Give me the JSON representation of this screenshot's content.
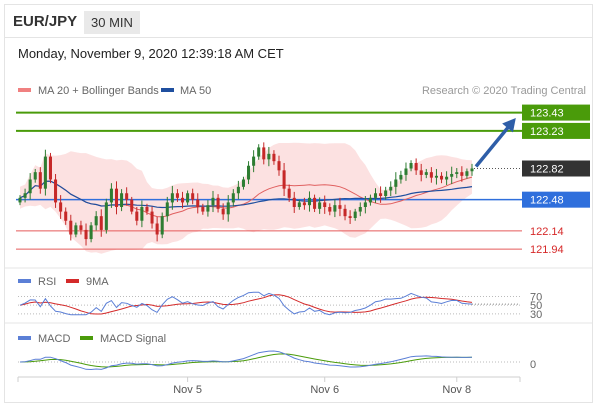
{
  "header": {
    "pair": "EUR/JPY",
    "timeframe": "30 MIN"
  },
  "datetime": "Monday, November 9, 2020 12:39:18 AM CET",
  "colors": {
    "up": "#2e7d32",
    "down": "#c62828",
    "green_level": "#4a9b0a",
    "blue_level": "#2f6fdc",
    "red_level": "#e55a5a",
    "ma20": "#e06060",
    "ma50": "#1f4f9f",
    "band_fill": "#f9c9c9",
    "arrow": "#2e5ea8",
    "rsi": "#5b7fd6",
    "rsi_ma": "#d42a2a",
    "macd": "#5b7fd6",
    "macd_signal": "#4a9b0a"
  },
  "chart_data": [
    {
      "type": "candlestick",
      "legend": [
        {
          "name": "MA 20 + Bollinger Bands",
          "color": "#f08080"
        },
        {
          "name": "MA 50",
          "color": "#1f4f9f"
        }
      ],
      "credit": "Research © 2020 Trading Central",
      "x_ticks": [
        {
          "label": "Nov 5",
          "index": 33
        },
        {
          "label": "Nov 6",
          "index": 60
        },
        {
          "label": "Nov 8",
          "index": 86
        }
      ],
      "ylim": [
        121.8,
        123.6
      ],
      "levels": [
        {
          "value": 123.43,
          "label": "123.43",
          "kind": "green"
        },
        {
          "value": 123.23,
          "label": "123.23",
          "kind": "green"
        },
        {
          "value": 122.82,
          "label": "122.82",
          "kind": "current"
        },
        {
          "value": 122.48,
          "label": "122.48",
          "kind": "blue"
        },
        {
          "value": 122.14,
          "label": "122.14",
          "kind": "red"
        },
        {
          "value": 121.94,
          "label": "121.94",
          "kind": "red"
        }
      ],
      "forecast_target": 123.43,
      "close": [
        122.5,
        122.55,
        122.7,
        122.78,
        122.6,
        122.95,
        122.7,
        122.45,
        122.35,
        122.25,
        122.1,
        122.2,
        122.15,
        122.05,
        122.2,
        122.3,
        122.15,
        122.45,
        122.6,
        122.4,
        122.55,
        122.48,
        122.35,
        122.25,
        122.4,
        122.35,
        122.22,
        122.1,
        122.3,
        122.45,
        122.55,
        122.5,
        122.45,
        122.55,
        122.48,
        122.4,
        122.35,
        122.42,
        122.5,
        122.38,
        122.32,
        122.45,
        122.55,
        122.62,
        122.7,
        122.85,
        122.95,
        123.05,
        122.92,
        122.98,
        122.9,
        122.8,
        122.6,
        122.5,
        122.4,
        122.45,
        122.42,
        122.5,
        122.38,
        122.45,
        122.4,
        122.35,
        122.42,
        122.38,
        122.3,
        122.28,
        122.35,
        122.4,
        122.45,
        122.5,
        122.55,
        122.52,
        122.58,
        122.62,
        122.7,
        122.75,
        122.82,
        122.88,
        122.8,
        122.75,
        122.78,
        122.72,
        122.74,
        122.7,
        122.73,
        122.76,
        122.78,
        122.74,
        122.79,
        122.82
      ]
    },
    {
      "type": "line",
      "legend": [
        {
          "name": "RSI",
          "color": "#5b7fd6"
        },
        {
          "name": "9MA",
          "color": "#d42a2a"
        }
      ],
      "y_ticks": [
        "70",
        "50",
        "30"
      ],
      "ylim": [
        25,
        85
      ]
    },
    {
      "type": "line",
      "legend": [
        {
          "name": "MACD",
          "color": "#5b7fd6"
        },
        {
          "name": "MACD Signal",
          "color": "#4a9b0a"
        }
      ],
      "y_ticks": [
        "0"
      ]
    }
  ]
}
